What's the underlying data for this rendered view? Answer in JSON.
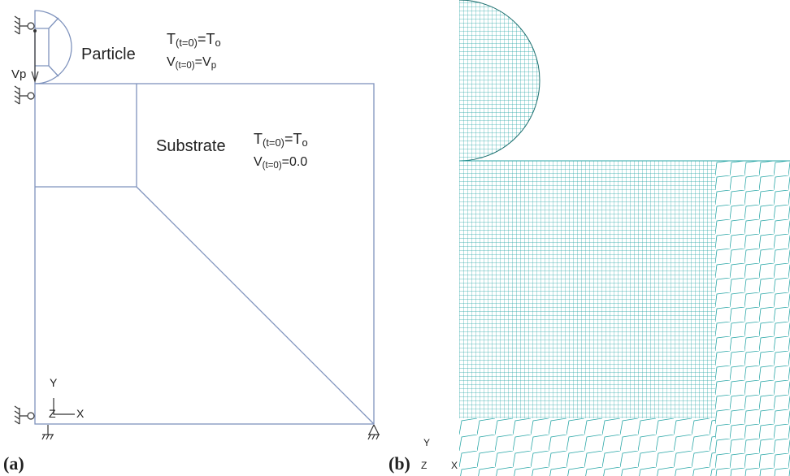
{
  "panel_a": {
    "label": "(a)",
    "particle": {
      "name": "Particle",
      "temperature": [
        "T",
        "(t=0)",
        "=T",
        "o"
      ],
      "velocity": [
        "V",
        "(t=0)",
        "=V",
        "p"
      ],
      "velocity_arrow": "Vp"
    },
    "substrate": {
      "name": "Substrate",
      "temperature": [
        "T",
        "(t=0)",
        "=T",
        "o"
      ],
      "velocity": [
        "V",
        "(t=0)",
        "=0.0"
      ]
    },
    "axes": {
      "y": "Y",
      "z": "Z",
      "x": "X"
    }
  },
  "panel_b": {
    "label": "(b)",
    "axes": {
      "y": "Y",
      "z": "Z",
      "x": "X"
    }
  }
}
